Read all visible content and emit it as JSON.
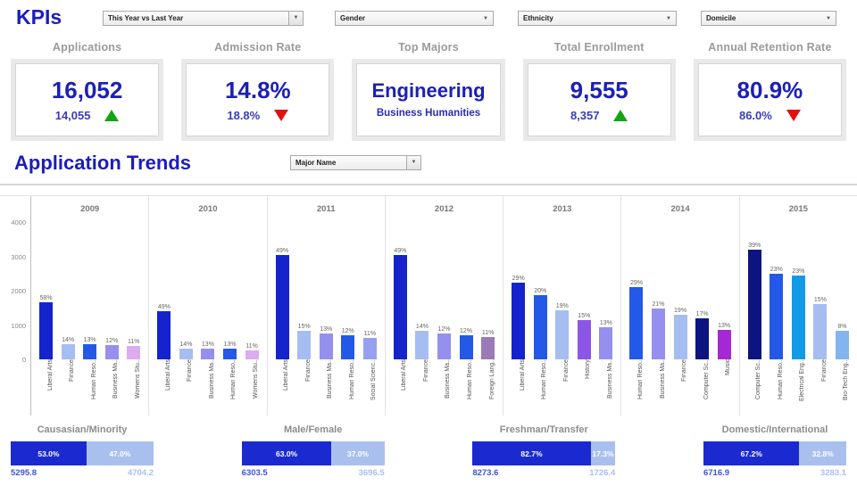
{
  "header": {
    "title": "KPIs",
    "filters": {
      "year_compare": "This Year vs Last Year",
      "gender": "Gender",
      "ethnicity": "Ethnicity",
      "domicile": "Domicile"
    }
  },
  "kpis": [
    {
      "label": "Applications",
      "value": "16,052",
      "previous": "14,055",
      "trend": "up"
    },
    {
      "label": "Admission Rate",
      "value": "14.8%",
      "previous": "18.8%",
      "trend": "down"
    },
    {
      "label": "Top Majors",
      "value": "Engineering",
      "secondary": "Business Humanities"
    },
    {
      "label": "Total Enrollment",
      "value": "9,555",
      "previous": "8,357",
      "trend": "up"
    },
    {
      "label": "Annual Retention Rate",
      "value": "80.9%",
      "previous": "86.0%",
      "trend": "down"
    }
  ],
  "trends": {
    "title": "Application Trends",
    "filter_label": "Major Name"
  },
  "colors": {
    "heading_blue": "#1c1cbe",
    "kpi_blue": "#1c20b6",
    "trend_up_green": "#13a513",
    "trend_down_red": "#e01111",
    "stacked_primary": "#1b2ad0",
    "stacked_secondary": "#a9c0ee"
  },
  "chart_data": [
    {
      "type": "bar",
      "title": "Application Trends",
      "xlabel": "Year / Major",
      "ylabel": "",
      "ylim": [
        0,
        4000
      ],
      "yticks": [
        0,
        1000,
        2000,
        3000,
        4000
      ],
      "grid": false,
      "legend": "none",
      "colors": {
        "Liberal Arts": "#1423cc",
        "Finance": "#a6bdf2",
        "Human Reso..": "#2458e8",
        "Business Ma..": "#9590ee",
        "Womens Stu..": "#dcabf0",
        "Social Scienc..": "#97a0f0",
        "Foreign Lang..": "#9a7ab8",
        "History": "#8b55e8",
        "Computer Sc..": "#0d1480",
        "Music": "#a428d4",
        "Electrical Eng..": "#129ae6",
        "Bio-Tech Eng..": "#82b4f0"
      },
      "groups": [
        {
          "year": "2009",
          "bars": [
            {
              "major": "Liberal Arts",
              "pct": "58%",
              "value": 1670
            },
            {
              "major": "Finance",
              "pct": "14%",
              "value": 450
            },
            {
              "major": "Human Reso..",
              "pct": "13%",
              "value": 430
            },
            {
              "major": "Business Ma..",
              "pct": "12%",
              "value": 420
            },
            {
              "major": "Womens Stu..",
              "pct": "11%",
              "value": 400
            }
          ]
        },
        {
          "year": "2010",
          "bars": [
            {
              "major": "Liberal Arts",
              "pct": "49%",
              "value": 1390
            },
            {
              "major": "Finance",
              "pct": "14%",
              "value": 320
            },
            {
              "major": "Business Ma..",
              "pct": "13%",
              "value": 300
            },
            {
              "major": "Human Reso..",
              "pct": "13%",
              "value": 320
            },
            {
              "major": "Womens Stu..",
              "pct": "11%",
              "value": 270
            }
          ]
        },
        {
          "year": "2011",
          "bars": [
            {
              "major": "Liberal Arts",
              "pct": "49%",
              "value": 3050
            },
            {
              "major": "Finance",
              "pct": "15%",
              "value": 830
            },
            {
              "major": "Business Ma..",
              "pct": "13%",
              "value": 760
            },
            {
              "major": "Human Reso..",
              "pct": "12%",
              "value": 690
            },
            {
              "major": "Social Scienc..",
              "pct": "11%",
              "value": 620
            }
          ]
        },
        {
          "year": "2012",
          "bars": [
            {
              "major": "Liberal Arts",
              "pct": "49%",
              "value": 3040
            },
            {
              "major": "Finance",
              "pct": "14%",
              "value": 820
            },
            {
              "major": "Business Ma..",
              "pct": "12%",
              "value": 750
            },
            {
              "major": "Human Reso..",
              "pct": "12%",
              "value": 700
            },
            {
              "major": "Foreign Lang..",
              "pct": "11%",
              "value": 640
            }
          ]
        },
        {
          "year": "2013",
          "bars": [
            {
              "major": "Liberal Arts",
              "pct": "29%",
              "value": 2230
            },
            {
              "major": "Human Reso..",
              "pct": "20%",
              "value": 1870
            },
            {
              "major": "Finance",
              "pct": "19%",
              "value": 1430
            },
            {
              "major": "History",
              "pct": "15%",
              "value": 1140
            },
            {
              "major": "Business Ma..",
              "pct": "13%",
              "value": 935
            }
          ]
        },
        {
          "year": "2014",
          "bars": [
            {
              "major": "Human Reso..",
              "pct": "29%",
              "value": 2100
            },
            {
              "major": "Business Ma..",
              "pct": "21%",
              "value": 1490
            },
            {
              "major": "Finance",
              "pct": "19%",
              "value": 1300
            },
            {
              "major": "Computer Sc..",
              "pct": "17%",
              "value": 1190
            },
            {
              "major": "Music",
              "pct": "13%",
              "value": 865
            }
          ]
        },
        {
          "year": "2015",
          "bars": [
            {
              "major": "Computer Sc..",
              "pct": "39%",
              "value": 3190
            },
            {
              "major": "Human Reso..",
              "pct": "23%",
              "value": 2490
            },
            {
              "major": "Electrical Eng..",
              "pct": "23%",
              "value": 2450
            },
            {
              "major": "Finance",
              "pct": "15%",
              "value": 1600
            },
            {
              "major": "Bio-Tech Eng..",
              "pct": "8%",
              "value": 825
            }
          ]
        }
      ]
    },
    {
      "type": "bar",
      "subtype": "100pct-stacked-horizontal",
      "charts": [
        {
          "title": "Causasian/Minority",
          "segments": [
            {
              "pct_label": "53.0%",
              "pct": 53.0,
              "value": "5295.8"
            },
            {
              "pct_label": "47.0%",
              "pct": 47.0,
              "value": "4704.2"
            }
          ]
        },
        {
          "title": "Male/Female",
          "segments": [
            {
              "pct_label": "63.0%",
              "pct": 63.0,
              "value": "6303.5"
            },
            {
              "pct_label": "37.0%",
              "pct": 37.0,
              "value": "3696.5"
            }
          ]
        },
        {
          "title": "Freshman/Transfer",
          "segments": [
            {
              "pct_label": "82.7%",
              "pct": 82.7,
              "value": "8273.6"
            },
            {
              "pct_label": "17.3%",
              "pct": 17.3,
              "value": "1726.4"
            }
          ]
        },
        {
          "title": "Domestic/International",
          "segments": [
            {
              "pct_label": "67.2%",
              "pct": 67.2,
              "value": "6716.9"
            },
            {
              "pct_label": "32.8%",
              "pct": 32.8,
              "value": "3283.1"
            }
          ]
        }
      ],
      "colors": {
        "primary": "#1b2ad0",
        "secondary": "#a9c0ee"
      }
    }
  ]
}
